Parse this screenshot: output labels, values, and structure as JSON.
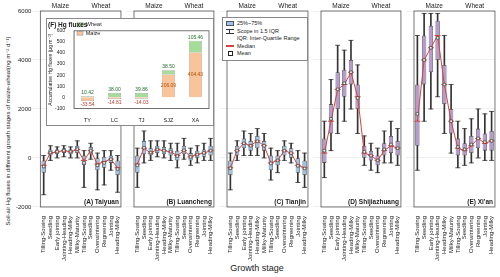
{
  "y_label": "Soil-air Hg fluxes in different growth stages of maize-wheat(ng m⁻² d⁻¹)",
  "x_label": "Growth stage",
  "legend_items": [
    {
      "label": "25%~75%",
      "marker": "box",
      "color": "#9ec3e6"
    },
    {
      "label": "Scope in 1.5 IQR",
      "marker": "whisker"
    },
    {
      "label": "IQR: Inter-Quartile Range"
    },
    {
      "label": "Median",
      "marker": "line",
      "color": "#d9423a"
    },
    {
      "label": "Mean",
      "marker": "square"
    }
  ],
  "chart_data": [
    {
      "type": "boxplot",
      "title": "(A) Taiyuan",
      "color": "#9ec3e6",
      "median_color": "#d9423a",
      "categories": [
        "Tilling-Sowing",
        "Seedling",
        "Early jointing",
        "Jointing-Heading",
        "Heading-Milky",
        "Milky-Maturity",
        "Tilling-Sowing",
        "Seedling",
        "Overwintering",
        "Regreening",
        "Jointing",
        "Heading-Milky"
      ],
      "group_of_category": [
        "Maize",
        "Maize",
        "Maize",
        "Maize",
        "Maize",
        "Maize",
        "Wheat",
        "Wheat",
        "Wheat",
        "Wheat",
        "Wheat",
        "Wheat"
      ],
      "whisker_low": [
        -1500,
        -100,
        0,
        50,
        0,
        0,
        -1200,
        -50,
        -1300,
        -1100,
        -500,
        -1400
      ],
      "q1": [
        -600,
        100,
        150,
        200,
        150,
        200,
        -300,
        150,
        -500,
        -400,
        -200,
        -700
      ],
      "median": [
        -300,
        200,
        250,
        300,
        250,
        350,
        -100,
        300,
        -250,
        -150,
        -50,
        -400
      ],
      "q3": [
        -100,
        350,
        350,
        400,
        350,
        500,
        100,
        450,
        0,
        50,
        100,
        -100
      ],
      "whisker_high": [
        100,
        500,
        450,
        500,
        450,
        700,
        300,
        600,
        200,
        300,
        300,
        100
      ],
      "mean": [
        -350,
        220,
        260,
        300,
        260,
        360,
        -200,
        300,
        -300,
        -200,
        -50,
        -450
      ],
      "ylim": [
        -2000,
        6000
      ],
      "yticks": [
        -2000,
        0,
        2000,
        4000,
        6000
      ],
      "grid": true,
      "tick_labels": true
    },
    {
      "type": "boxplot",
      "title": "(B) Luancheng",
      "color": "#9ec3e6",
      "median_color": "#d9423a",
      "categories": [
        "Tilling-Sowing",
        "Seedling",
        "Early jointing",
        "Jointing-Heading",
        "Heading-Milky",
        "Milky-Maturity",
        "Tilling-Sowing",
        "Seedling",
        "Overwintering",
        "Regreening",
        "Jointing",
        "Heading-Milky"
      ],
      "group_of_category": [
        "Maize",
        "Maize",
        "Maize",
        "Maize",
        "Maize",
        "Maize",
        "Wheat",
        "Wheat",
        "Wheat",
        "Wheat",
        "Wheat",
        "Wheat"
      ],
      "whisker_low": [
        -1200,
        -200,
        -100,
        50,
        0,
        -100,
        -400,
        -50,
        -300,
        -200,
        -100,
        -100
      ],
      "q1": [
        -600,
        150,
        100,
        200,
        150,
        100,
        -100,
        150,
        -100,
        0,
        50,
        100
      ],
      "median": [
        -250,
        400,
        200,
        350,
        300,
        250,
        100,
        300,
        50,
        150,
        200,
        300
      ],
      "q3": [
        100,
        700,
        400,
        500,
        450,
        400,
        300,
        500,
        200,
        300,
        350,
        500
      ],
      "whisker_high": [
        400,
        1100,
        700,
        700,
        700,
        600,
        600,
        800,
        400,
        500,
        600,
        800
      ],
      "mean": [
        -300,
        420,
        220,
        350,
        300,
        260,
        80,
        310,
        40,
        140,
        210,
        300
      ],
      "ylim": [
        -2000,
        6000
      ],
      "yticks": [
        -2000,
        0,
        2000,
        4000,
        6000
      ],
      "grid": true,
      "tick_labels": "x"
    },
    {
      "type": "boxplot",
      "title": "(C) Tianjin",
      "color": "#9ec3e6",
      "median_color": "#d9423a",
      "categories": [
        "Tilling-Sowing",
        "Seedling",
        "Early jointing",
        "Jointing-Heading",
        "Heading-Milky",
        "Milky-Maturity",
        "Tilling-Sowing",
        "Seedling",
        "Overwintering",
        "Regreening",
        "Jointing",
        "Heading-Milky"
      ],
      "group_of_category": [
        "Maize",
        "Maize",
        "Maize",
        "Maize",
        "Maize",
        "Maize",
        "Wheat",
        "Wheat",
        "Wheat",
        "Wheat",
        "Wheat",
        "Wheat"
      ],
      "whisker_low": [
        -1300,
        -100,
        100,
        100,
        100,
        0,
        -900,
        -600,
        -100,
        -200,
        -1000,
        -1200
      ],
      "q1": [
        -700,
        100,
        400,
        300,
        400,
        300,
        -500,
        -300,
        100,
        0,
        -600,
        -700
      ],
      "median": [
        -400,
        300,
        600,
        500,
        700,
        500,
        -200,
        -100,
        300,
        200,
        -300,
        -400
      ],
      "q3": [
        -100,
        500,
        800,
        700,
        900,
        700,
        100,
        100,
        500,
        400,
        0,
        -100
      ],
      "whisker_high": [
        200,
        700,
        1100,
        1000,
        1200,
        1000,
        400,
        300,
        700,
        600,
        300,
        200
      ],
      "mean": [
        -420,
        300,
        600,
        500,
        680,
        500,
        -220,
        -100,
        300,
        200,
        -320,
        -430
      ],
      "ylim": [
        -2000,
        6000
      ],
      "yticks": [
        -2000,
        0,
        2000,
        4000,
        6000
      ],
      "grid": true,
      "tick_labels": "x"
    },
    {
      "type": "boxplot",
      "title": "(D) Shijiazhuang",
      "color": "#b79ad1",
      "median_color": "#d9423a",
      "categories": [
        "Tilling-Sowing",
        "Seedling",
        "Early jointing",
        "Jointing-Heading",
        "Heading-Milky",
        "Milky-Maturity",
        "Tilling-Sowing",
        "Seedling",
        "Overwintering",
        "Regreening",
        "Jointing",
        "Heading-Milky"
      ],
      "group_of_category": [
        "Maize",
        "Maize",
        "Maize",
        "Maize",
        "Maize",
        "Maize",
        "Wheat",
        "Wheat",
        "Wheat",
        "Wheat",
        "Wheat",
        "Wheat"
      ],
      "whisker_low": [
        -800,
        300,
        1000,
        1500,
        2000,
        1000,
        -300,
        -500,
        -600,
        -200,
        -200,
        -300
      ],
      "q1": [
        -200,
        1000,
        2000,
        2500,
        3000,
        2000,
        0,
        -100,
        -300,
        100,
        200,
        100
      ],
      "median": [
        200,
        1500,
        2800,
        3000,
        3500,
        2500,
        200,
        100,
        -100,
        300,
        500,
        400
      ],
      "q3": [
        800,
        2200,
        3500,
        3600,
        4000,
        3000,
        500,
        300,
        100,
        600,
        900,
        700
      ],
      "whisker_high": [
        1500,
        3200,
        4600,
        4400,
        4800,
        3800,
        900,
        600,
        400,
        1100,
        1500,
        1200
      ],
      "mean": [
        300,
        1600,
        2800,
        3050,
        3500,
        2450,
        250,
        100,
        -100,
        350,
        550,
        400
      ],
      "ylim": [
        -2000,
        6000
      ],
      "yticks": [
        -2000,
        0,
        2000,
        4000,
        6000
      ],
      "grid": true,
      "tick_labels": "x"
    },
    {
      "type": "boxplot",
      "title": "(E) Xi'an",
      "color": "#b79ad1",
      "median_color": "#d9423a",
      "categories": [
        "Tilling-Sowing",
        "Seedling",
        "Early jointing",
        "Jointing-Heading",
        "Heading-Milky",
        "Milky-Maturity",
        "Tilling-Sowing",
        "Seedling",
        "Overwintering",
        "Regreening",
        "Jointing",
        "Heading-Milky"
      ],
      "group_of_category": [
        "Maize",
        "Maize",
        "Maize",
        "Maize",
        "Maize",
        "Maize",
        "Wheat",
        "Wheat",
        "Wheat",
        "Wheat",
        "Wheat",
        "Wheat"
      ],
      "whisker_low": [
        -500,
        1500,
        2000,
        2500,
        1000,
        200,
        -400,
        -300,
        -200,
        0,
        -100,
        -100
      ],
      "q1": [
        500,
        3000,
        3500,
        4000,
        2200,
        1000,
        100,
        100,
        200,
        400,
        300,
        300
      ],
      "median": [
        1500,
        4000,
        4500,
        5000,
        3000,
        1500,
        400,
        300,
        500,
        800,
        600,
        700
      ],
      "q3": [
        3000,
        5000,
        5400,
        5600,
        3800,
        2000,
        800,
        600,
        900,
        1200,
        1000,
        1100
      ],
      "whisker_high": [
        5000,
        5900,
        5900,
        5900,
        5000,
        3000,
        1500,
        1200,
        1600,
        2000,
        1800,
        1900
      ],
      "mean": [
        1800,
        4000,
        4500,
        4900,
        3000,
        1500,
        450,
        350,
        550,
        800,
        650,
        700
      ],
      "ylim": [
        -2000,
        6000
      ],
      "yticks": [
        -2000,
        0,
        2000,
        4000,
        6000
      ],
      "grid": true,
      "tick_labels": "x"
    },
    {
      "type": "bar",
      "title": "(F) Hg fluxes",
      "y_label": "Accumulative Hg fluxes (μg m⁻²)",
      "categories": [
        "TY",
        "LC",
        "TJ",
        "SJZ",
        "XA"
      ],
      "stacked": true,
      "legend": "top-left",
      "data_labels": true,
      "series": [
        {
          "name": "Maize",
          "color": "#f9c49a",
          "values": [
            -33.54,
            -14.81,
            -14.03,
            206.09,
            404.43
          ],
          "value_labels": [
            "-33.54",
            "-14.81",
            "-14.03",
            "206.09",
            "404.43"
          ]
        },
        {
          "name": "Wheat",
          "color": "#a6dc9a",
          "values": [
            10.42,
            38,
            39.86,
            38.5,
            105.46
          ],
          "value_labels": [
            "10.42",
            "38.00",
            "39.86",
            "38.50",
            "105.46"
          ]
        }
      ],
      "ylim": [
        -100,
        600
      ],
      "yticks": [
        -100,
        0,
        100,
        200,
        300,
        400,
        500,
        600
      ],
      "grid": false
    }
  ]
}
